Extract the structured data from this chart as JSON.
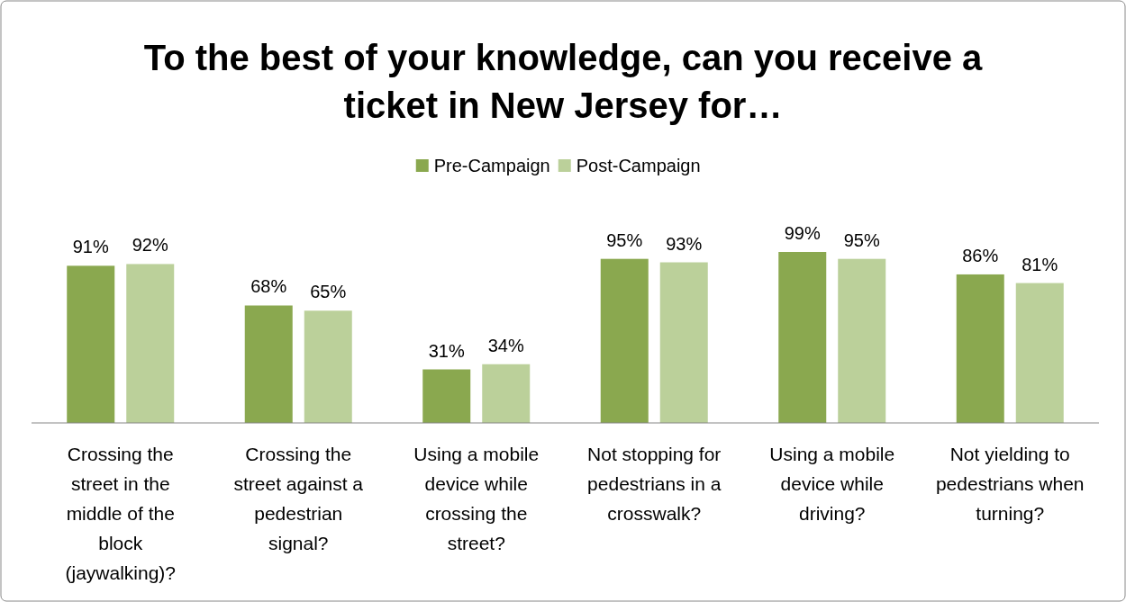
{
  "chart_data": {
    "type": "bar",
    "title": "To the best of your knowledge, can you receive a ticket in New Jersey for…",
    "categories": [
      "Crossing the street in the middle of the block (jaywalking)?",
      "Crossing the street against a pedestrian signal?",
      "Using a mobile device while crossing the street?",
      "Not stopping for pedestrians in a crosswalk?",
      "Using a mobile device while driving?",
      "Not yielding to pedestrians when turning?"
    ],
    "series": [
      {
        "name": "Pre-Campaign",
        "color": "#8aa84f",
        "values": [
          91,
          68,
          31,
          95,
          99,
          86
        ],
        "value_labels": [
          "91%",
          "68%",
          "31%",
          "95%",
          "99%",
          "86%"
        ]
      },
      {
        "name": "Post-Campaign",
        "color": "#bbd09a",
        "values": [
          92,
          65,
          34,
          93,
          95,
          81
        ],
        "value_labels": [
          "92%",
          "65%",
          "34%",
          "93%",
          "95%",
          "81%"
        ]
      }
    ],
    "relative": false,
    "legend": "top"
  }
}
